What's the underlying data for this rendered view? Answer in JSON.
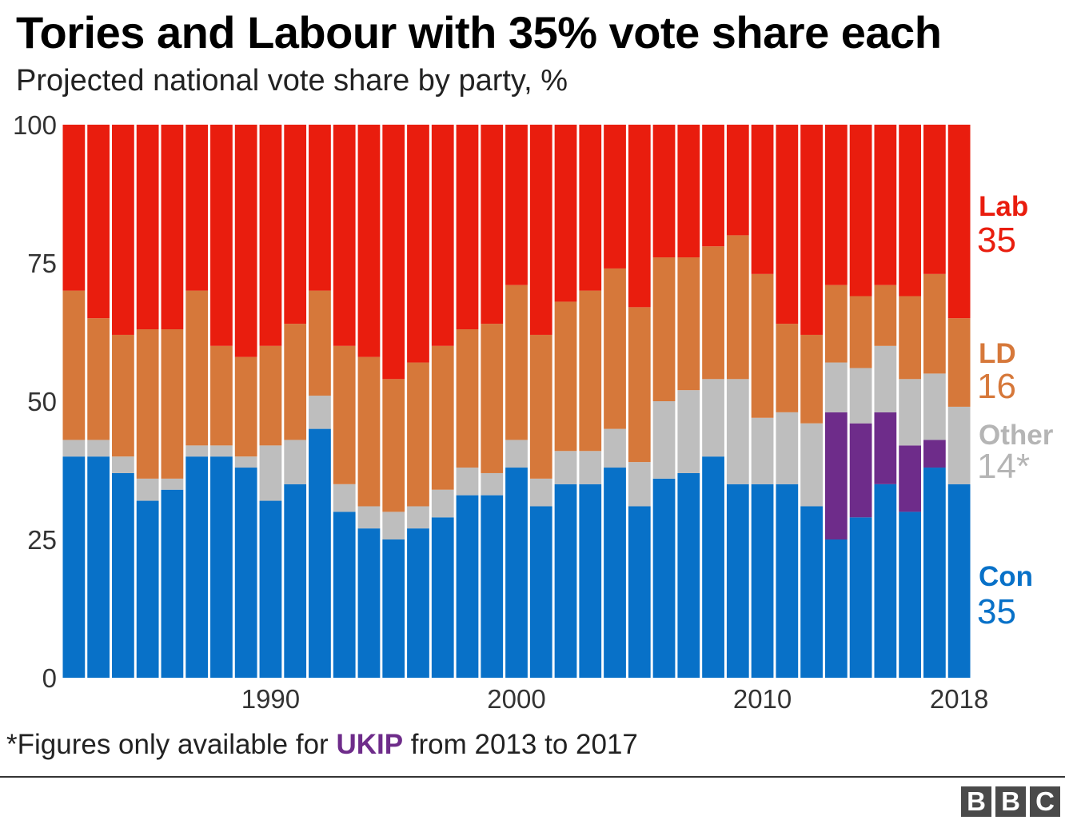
{
  "chart_data": {
    "type": "bar",
    "stacked": true,
    "title": "Tories and Labour with 35% vote share each",
    "subtitle": "Projected national vote share by party, %",
    "xlabel": "",
    "ylabel": "",
    "ylim": [
      0,
      100
    ],
    "yticks": [
      "0",
      "25",
      "50",
      "75",
      "100"
    ],
    "xtick_labels": [
      "1990",
      "2000",
      "2010",
      "2018"
    ],
    "categories": [
      1982,
      1983,
      1984,
      1985,
      1986,
      1987,
      1988,
      1989,
      1990,
      1991,
      1992,
      1993,
      1994,
      1995,
      1996,
      1997,
      1998,
      1999,
      2000,
      2001,
      2002,
      2003,
      2004,
      2005,
      2006,
      2007,
      2008,
      2009,
      2010,
      2011,
      2012,
      2013,
      2014,
      2015,
      2016,
      2017,
      2018
    ],
    "series": [
      {
        "name": "Con",
        "color": "#0871c8",
        "values": [
          40,
          40,
          37,
          32,
          34,
          40,
          40,
          38,
          32,
          35,
          45,
          30,
          27,
          25,
          27,
          29,
          33,
          33,
          38,
          31,
          35,
          35,
          38,
          31,
          36,
          37,
          40,
          35,
          35,
          35,
          31,
          25,
          29,
          35,
          30,
          38,
          35
        ]
      },
      {
        "name": "UKIP",
        "color": "#6e2c8a",
        "values": [
          0,
          0,
          0,
          0,
          0,
          0,
          0,
          0,
          0,
          0,
          0,
          0,
          0,
          0,
          0,
          0,
          0,
          0,
          0,
          0,
          0,
          0,
          0,
          0,
          0,
          0,
          0,
          0,
          0,
          0,
          0,
          23,
          17,
          13,
          12,
          5,
          0
        ]
      },
      {
        "name": "Other",
        "color": "#bebebe",
        "values": [
          3,
          3,
          3,
          4,
          2,
          2,
          2,
          2,
          10,
          8,
          6,
          5,
          4,
          5,
          4,
          5,
          5,
          4,
          5,
          5,
          6,
          6,
          7,
          8,
          14,
          15,
          14,
          19,
          12,
          13,
          15,
          9,
          10,
          12,
          12,
          12,
          14
        ]
      },
      {
        "name": "LD",
        "color": "#d6783a",
        "values": [
          27,
          22,
          22,
          27,
          27,
          28,
          18,
          18,
          18,
          21,
          19,
          25,
          27,
          24,
          26,
          26,
          25,
          27,
          28,
          26,
          27,
          29,
          29,
          28,
          26,
          24,
          24,
          26,
          26,
          16,
          16,
          14,
          13,
          11,
          15,
          18,
          16
        ]
      },
      {
        "name": "Lab",
        "color": "#e91d0e",
        "values": [
          30,
          35,
          38,
          37,
          37,
          30,
          40,
          42,
          40,
          36,
          30,
          40,
          42,
          46,
          43,
          40,
          37,
          36,
          29,
          38,
          32,
          30,
          26,
          33,
          24,
          24,
          22,
          20,
          27,
          36,
          38,
          29,
          31,
          29,
          31,
          27,
          35
        ]
      }
    ],
    "end_labels": [
      {
        "party": "Lab",
        "value": "35",
        "color": "#e91d0e"
      },
      {
        "party": "LD",
        "value": "16",
        "color": "#d6783a"
      },
      {
        "party": "Other",
        "value": "14*",
        "color": "#b5b5b5"
      },
      {
        "party": "Con",
        "value": "35",
        "color": "#0871c8"
      }
    ],
    "grid": false,
    "legend": "right end labels"
  },
  "footnote": {
    "pre": "*Figures only available for ",
    "ukip": "UKIP",
    "post": " from 2013 to 2017"
  },
  "logo": [
    "B",
    "B",
    "C"
  ]
}
